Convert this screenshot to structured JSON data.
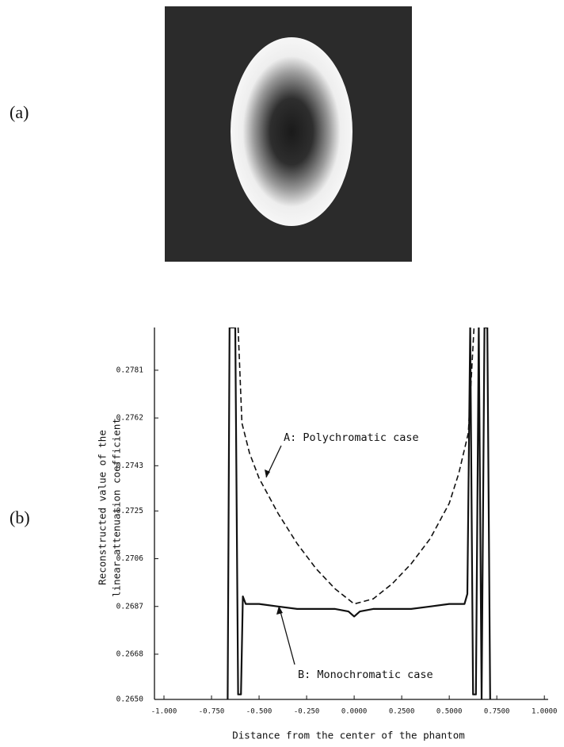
{
  "panel_labels": [
    "(a)",
    "(b)"
  ],
  "chart_data": {
    "type": "line",
    "ylabel": [
      "Reconstructed value of the",
      "linear attenuation coefficient"
    ],
    "xlabel": "Distance from the center of the phantom",
    "xlim": [
      -1.05,
      1.02
    ],
    "ylim": [
      0.265,
      0.2798
    ],
    "xticks": [
      {
        "value": -1,
        "label": "-1.000"
      },
      {
        "value": -0.75,
        "label": "-0.750"
      },
      {
        "value": -0.5,
        "label": "-0.500"
      },
      {
        "value": -0.25,
        "label": "-0.250"
      },
      {
        "value": 0,
        "label": "0.0000"
      },
      {
        "value": 0.25,
        "label": "0.2500"
      },
      {
        "value": 0.5,
        "label": "0.5000"
      },
      {
        "value": 0.75,
        "label": "0.7500"
      },
      {
        "value": 1,
        "label": "1.0000"
      }
    ],
    "yticks": [
      {
        "value": 0.265,
        "label": "0.2650"
      },
      {
        "value": 0.2668,
        "label": "0.2668"
      },
      {
        "value": 0.2687,
        "label": "0.2687"
      },
      {
        "value": 0.2706,
        "label": "0.2706"
      },
      {
        "value": 0.2725,
        "label": "0.2725"
      },
      {
        "value": 0.2743,
        "label": "0.2743"
      },
      {
        "value": 0.2762,
        "label": "0.2762"
      },
      {
        "value": 0.2781,
        "label": "0.2781"
      }
    ],
    "series": [
      {
        "name": "A:  Polychromatic case",
        "color": "#111111",
        "dash": true,
        "x": [
          -0.61,
          -0.59,
          -0.55,
          -0.5,
          -0.4,
          -0.3,
          -0.2,
          -0.1,
          0,
          0.1,
          0.2,
          0.3,
          0.4,
          0.5,
          0.55,
          0.6,
          0.63
        ],
        "values": [
          0.2798,
          0.276,
          0.2748,
          0.2738,
          0.2724,
          0.2712,
          0.2702,
          0.2694,
          0.2688,
          0.269,
          0.2696,
          0.2704,
          0.2714,
          0.2728,
          0.274,
          0.2756,
          0.2798
        ]
      },
      {
        "name": "B:  Monochromatic case",
        "color": "#111111",
        "dash": false,
        "x": [
          -0.665,
          -0.655,
          -0.645,
          -0.625,
          -0.61,
          -0.595,
          -0.585,
          -0.57,
          -0.5,
          -0.4,
          -0.3,
          -0.2,
          -0.1,
          -0.03,
          0,
          0.03,
          0.1,
          0.2,
          0.3,
          0.4,
          0.5,
          0.58,
          0.595,
          0.61,
          0.625,
          0.64,
          0.655,
          0.67,
          0.685,
          0.7,
          0.715
        ],
        "values": [
          0.265,
          0.2798,
          0.2798,
          0.2798,
          0.2652,
          0.2652,
          0.2691,
          0.2688,
          0.2688,
          0.2687,
          0.2686,
          0.2686,
          0.2686,
          0.2685,
          0.2683,
          0.2685,
          0.2686,
          0.2686,
          0.2686,
          0.2687,
          0.2688,
          0.2688,
          0.2692,
          0.2798,
          0.2652,
          0.2652,
          0.2798,
          0.265,
          0.2798,
          0.2798,
          0.265
        ]
      }
    ]
  }
}
